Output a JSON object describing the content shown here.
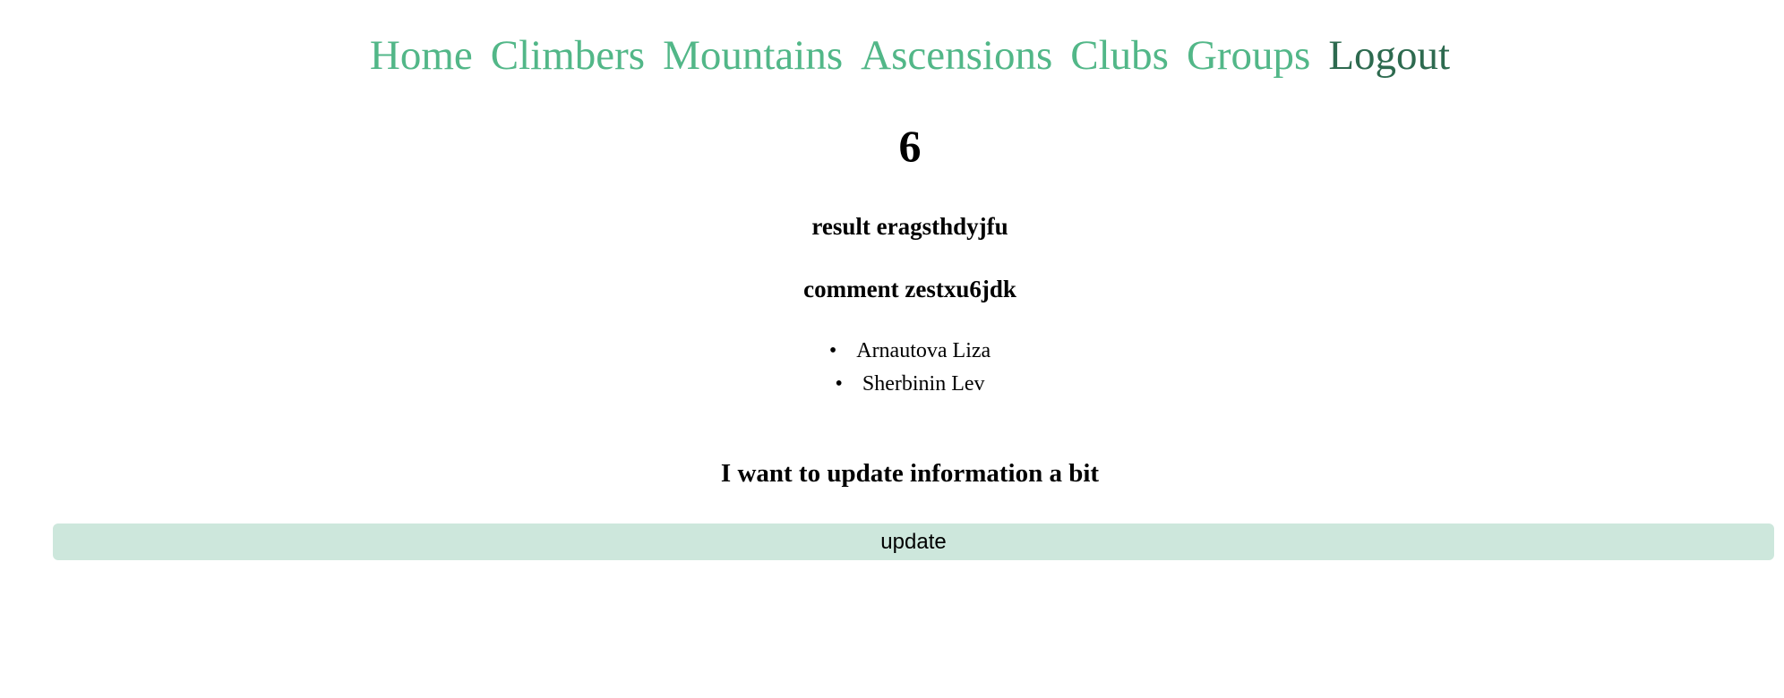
{
  "nav": {
    "items": [
      {
        "label": "Home"
      },
      {
        "label": "Climbers"
      },
      {
        "label": "Mountains"
      },
      {
        "label": "Ascensions"
      },
      {
        "label": "Clubs"
      },
      {
        "label": "Groups"
      },
      {
        "label": "Logout"
      }
    ],
    "link_color": "#52b788",
    "active_color": "#2d6a4f"
  },
  "ascension": {
    "id": "6",
    "result": "result eragsthdyjfu",
    "comment": "comment zestxu6jdk",
    "climbers": [
      "Arnautova Liza",
      "Sherbinin Lev"
    ]
  },
  "update": {
    "heading": "I want to update information a bit",
    "button_label": "update",
    "button_color": "#cde7dc"
  }
}
